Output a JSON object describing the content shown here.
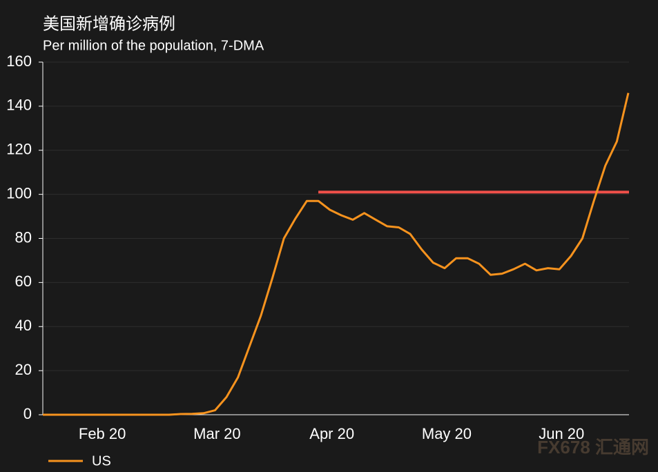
{
  "chart_data": {
    "type": "line",
    "title": "美国新增确诊病例",
    "subtitle": "Per million of the population, 7-DMA",
    "categories": [
      null,
      null,
      null,
      null,
      null,
      "Feb 20",
      null,
      null,
      null,
      null,
      null,
      null,
      null,
      null,
      null,
      "Mar 20",
      null,
      null,
      null,
      null,
      null,
      null,
      null,
      null,
      null,
      "Apr 20",
      null,
      null,
      null,
      null,
      null,
      null,
      null,
      null,
      null,
      "May 20",
      null,
      null,
      null,
      null,
      null,
      null,
      null,
      null,
      null,
      "Jun 20",
      null,
      null,
      null,
      null,
      null,
      null
    ],
    "series": [
      {
        "name": "US",
        "color": "#f7931e",
        "values": [
          0,
          0,
          0,
          0,
          0,
          0,
          0,
          0,
          0,
          0,
          0,
          0,
          0.3,
          0.4,
          0.7,
          2,
          8,
          17,
          31,
          45,
          62,
          80,
          89,
          97,
          97,
          93,
          90.5,
          88.5,
          91.5,
          88.5,
          85.5,
          85,
          82,
          75,
          69,
          66.5,
          71,
          71,
          68.5,
          63.5,
          64,
          66,
          68.5,
          65.5,
          66.5,
          66,
          72,
          80,
          97,
          113,
          124,
          146
        ]
      }
    ],
    "reference_line": {
      "value": 101,
      "color": "#f0504a"
    },
    "ylim": [
      0,
      160
    ],
    "yticks": [
      0,
      20,
      40,
      60,
      80,
      100,
      120,
      140,
      160
    ],
    "grid": true,
    "legend": "bottom-left",
    "watermark": "FX678 汇通网"
  }
}
